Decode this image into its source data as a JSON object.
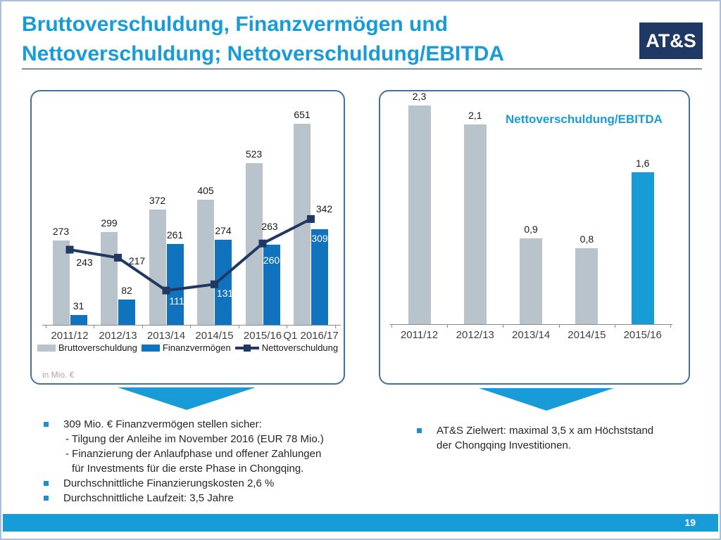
{
  "slide": {
    "title_line1": "Bruttoverschuldung, Finanzvermögen und",
    "title_line2": "Nettoverschuldung; Nettoverschuldung/EBITDA",
    "logo_text": "AT&S",
    "page_number": "19"
  },
  "colors": {
    "accent": "#189CD8",
    "navy": "#1F3864",
    "bar_gray": "#B9C3CB",
    "bar_blue": "#1172BD",
    "panel_border": "#41719C",
    "white": "#FFFFFF"
  },
  "chart_data": [
    {
      "type": "bar",
      "subtype": "grouped-bars-with-line",
      "title": "",
      "unit_label": "in Mio. €",
      "categories": [
        "2011/12",
        "2012/13",
        "2013/14",
        "2014/15",
        "2015/16",
        "Q1 2016/17"
      ],
      "ylim": [
        0,
        680
      ],
      "grid": false,
      "legend_position": "bottom",
      "series": [
        {
          "name": "Bruttoverschuldung",
          "kind": "bar",
          "color_key": "bar_gray",
          "values": [
            273,
            299,
            372,
            405,
            523,
            651
          ]
        },
        {
          "name": "Finanzvermögen",
          "kind": "bar",
          "color_key": "bar_blue",
          "values": [
            31,
            82,
            261,
            274,
            260,
            309
          ],
          "inside_label_offset": [
            null,
            null,
            null,
            null,
            14,
            5
          ]
        },
        {
          "name": "Nettoverschuldung",
          "kind": "line",
          "color_key": "navy",
          "values": [
            243,
            217,
            111,
            131,
            263,
            342
          ],
          "label_offsets": [
            [
              21,
              18
            ],
            [
              27,
              4
            ],
            [
              15,
              15
            ],
            [
              15,
              13
            ],
            [
              10,
              -24
            ],
            [
              19,
              -15
            ]
          ],
          "label_white": [
            false,
            false,
            true,
            true,
            false,
            false
          ]
        }
      ]
    },
    {
      "type": "bar",
      "title": "Nettoverschuldung/EBITDA",
      "categories": [
        "2011/12",
        "2012/13",
        "2013/14",
        "2014/15",
        "2015/16"
      ],
      "values": [
        2.3,
        2.1,
        0.9,
        0.8,
        1.6
      ],
      "value_labels": [
        "2,3",
        "2,1",
        "0,9",
        "0,8",
        "1,6"
      ],
      "bar_color_keys": [
        "bar_gray",
        "bar_gray",
        "bar_gray",
        "bar_gray",
        "accent"
      ],
      "ylim": [
        0,
        2.45
      ],
      "grid": false
    }
  ],
  "notes_left": {
    "lines": [
      {
        "type": "bullet",
        "text": "309 Mio. € Finanzvermögen stellen sicher:"
      },
      {
        "type": "sub",
        "text": "- Tilgung der Anleihe im November 2016 (EUR 78 Mio.)"
      },
      {
        "type": "sub",
        "text": "- Finanzierung der Anlaufphase und offener Zahlungen"
      },
      {
        "type": "sub2",
        "text": "für Investments für die erste Phase in Chongqing."
      },
      {
        "type": "bullet",
        "text": "Durchschnittliche Finanzierungskosten 2,6 %"
      },
      {
        "type": "bullet",
        "text": "Durchschnittliche Laufzeit: 3,5 Jahre"
      }
    ]
  },
  "notes_right": {
    "lines": [
      {
        "type": "bullet",
        "text": "AT&S Zielwert: maximal 3,5 x am Höchststand der Chongqing Investitionen."
      }
    ]
  }
}
